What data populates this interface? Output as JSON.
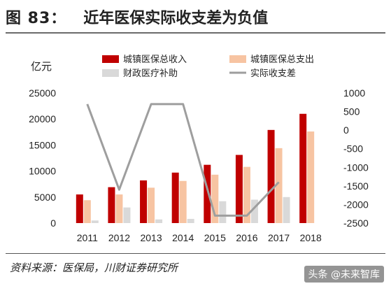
{
  "figure": {
    "number": "图 83：",
    "title": "近年医保实际收支差为负值",
    "source": "资料来源：医保局，川财证券研究所",
    "watermark": "头条 @未来智库"
  },
  "colors": {
    "income": "#c00000",
    "expense": "#f7c4a2",
    "subsidy": "#d9d9d9",
    "balance": "#9e9e9e"
  },
  "chart_data": {
    "type": "bar",
    "unit_label": "亿元",
    "categories": [
      "2011",
      "2012",
      "2013",
      "2014",
      "2015",
      "2016",
      "2017",
      "2018"
    ],
    "series": [
      {
        "name": "城镇医保总收入",
        "type": "bar",
        "axis": "left",
        "values": [
          5500,
          6900,
          8200,
          9700,
          11200,
          13100,
          17900,
          21000
        ]
      },
      {
        "name": "城镇医保总支出",
        "type": "bar",
        "axis": "left",
        "values": [
          4400,
          5500,
          6800,
          8100,
          9300,
          10800,
          14400,
          17600
        ]
      },
      {
        "name": "财政医疗补助",
        "type": "bar",
        "axis": "left",
        "values": [
          500,
          3000,
          700,
          800,
          4200,
          4500,
          5000,
          null
        ]
      },
      {
        "name": "实际收支差",
        "type": "line",
        "axis": "right",
        "values": [
          700,
          -1600,
          700,
          700,
          -2300,
          -2300,
          -1400,
          null
        ]
      }
    ],
    "left_axis": {
      "min": 0,
      "max": 25000,
      "ticks": [
        0,
        5000,
        10000,
        15000,
        20000,
        25000
      ]
    },
    "right_axis": {
      "min": -2500,
      "max": 1000,
      "ticks": [
        1000,
        500,
        0,
        -500,
        -1000,
        -1500,
        -2000,
        -2500
      ]
    },
    "legend_position": "top"
  }
}
